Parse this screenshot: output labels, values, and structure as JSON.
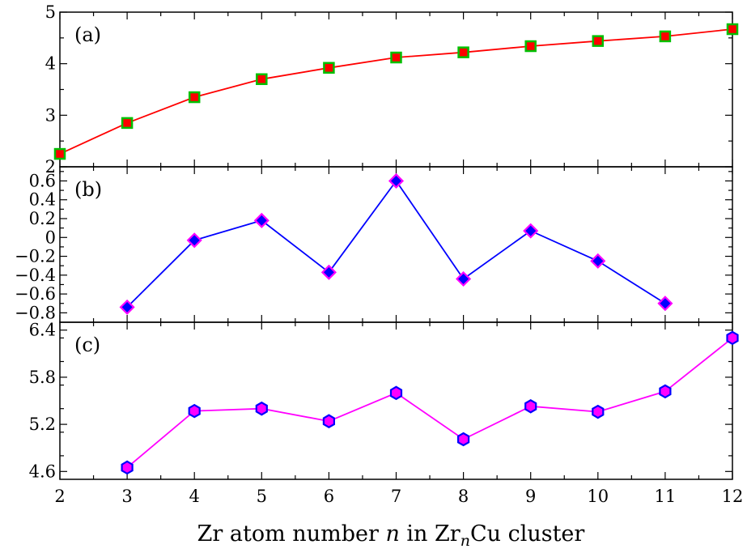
{
  "chart_data": [
    {
      "type": "line",
      "panel_label": "(a)",
      "x": [
        2,
        3,
        4,
        5,
        6,
        7,
        8,
        9,
        10,
        11,
        12
      ],
      "series": [
        {
          "name": "a",
          "values": [
            2.25,
            2.85,
            3.35,
            3.7,
            3.92,
            4.12,
            4.22,
            4.34,
            4.44,
            4.53,
            4.67
          ]
        }
      ],
      "xlim": [
        2,
        12
      ],
      "ylim": [
        2,
        5
      ],
      "yticks": [
        2,
        3,
        4,
        5
      ],
      "ytick_labels": [
        "2",
        "3",
        "4",
        "5"
      ],
      "line_color": "#ff0000",
      "marker": "square",
      "marker_fill": "#ff0000",
      "marker_edge": "#00c000"
    },
    {
      "type": "line",
      "panel_label": "(b)",
      "x": [
        3,
        4,
        5,
        6,
        7,
        8,
        9,
        10,
        11
      ],
      "series": [
        {
          "name": "b",
          "values": [
            -0.74,
            -0.03,
            0.18,
            -0.37,
            0.6,
            -0.44,
            0.07,
            -0.25,
            -0.7
          ]
        }
      ],
      "xlim": [
        2,
        12
      ],
      "ylim": [
        -0.9,
        0.75
      ],
      "yticks": [
        -0.8,
        -0.6,
        -0.4,
        -0.2,
        0,
        0.2,
        0.4,
        0.6
      ],
      "ytick_labels": [
        "−0.8",
        "−0.6",
        "−0.4",
        "−0.2",
        "0",
        "0.2",
        "0.4",
        "0.6"
      ],
      "line_color": "#0000ff",
      "marker": "diamond",
      "marker_fill": "#0000ff",
      "marker_edge": "#ff00ff"
    },
    {
      "type": "line",
      "panel_label": "(c)",
      "x": [
        3,
        4,
        5,
        6,
        7,
        8,
        9,
        10,
        11,
        12
      ],
      "series": [
        {
          "name": "c",
          "values": [
            4.65,
            5.37,
            5.4,
            5.24,
            5.6,
            5.01,
            5.43,
            5.36,
            5.62,
            6.3
          ]
        }
      ],
      "xlim": [
        2,
        12
      ],
      "ylim": [
        4.5,
        6.5
      ],
      "yticks": [
        4.6,
        5.2,
        5.8,
        6.4
      ],
      "ytick_labels": [
        "4.6",
        "5.2",
        "5.8",
        "6.4"
      ],
      "line_color": "#ff00ff",
      "marker": "hexagon",
      "marker_fill": "#ff00ff",
      "marker_edge": "#0000ff"
    }
  ],
  "xticks": [
    2,
    3,
    4,
    5,
    6,
    7,
    8,
    9,
    10,
    11,
    12
  ],
  "xtick_labels": [
    "2",
    "3",
    "4",
    "5",
    "6",
    "7",
    "8",
    "9",
    "10",
    "11",
    "12"
  ],
  "xlabel": {
    "prefix": "Zr atom number ",
    "var": "n",
    "middle": " in Zr",
    "subscript": "n",
    "suffix": "Cu cluster"
  }
}
